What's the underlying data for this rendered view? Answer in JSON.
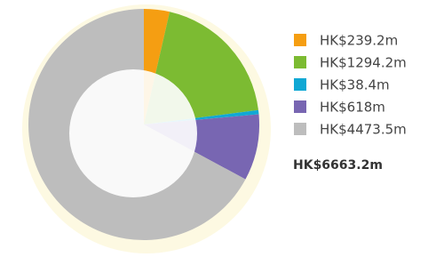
{
  "chart_data": {
    "type": "pie",
    "categories": [
      "HK$239.2m",
      "HK$1294.2m",
      "HK$38.4m",
      "HK$618m",
      "HK$4473.5m"
    ],
    "values": [
      239.2,
      1294.2,
      38.4,
      618,
      4473.5
    ],
    "colors": [
      "#f59e12",
      "#7cbb32",
      "#10a8d4",
      "#7866b2",
      "#bdbdbd"
    ],
    "total_label": "HK$6663.2m",
    "legend": "right"
  }
}
